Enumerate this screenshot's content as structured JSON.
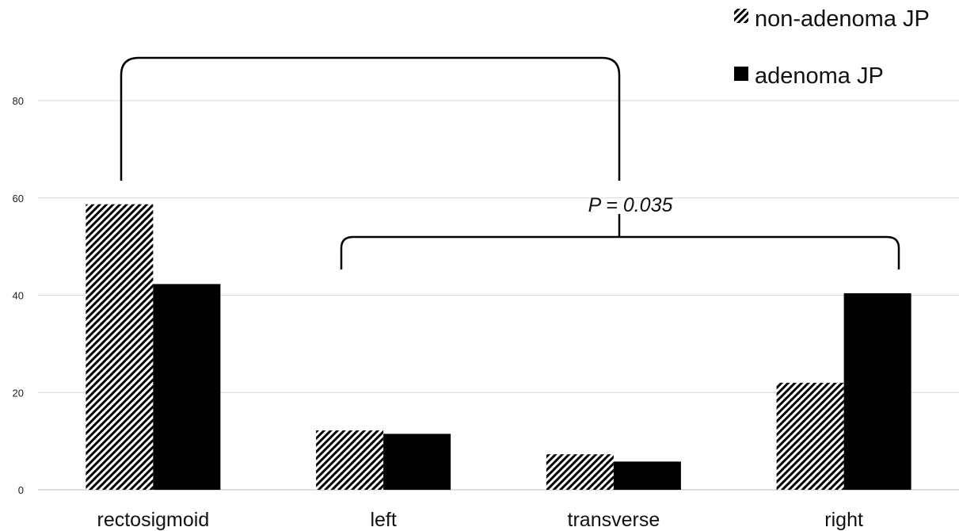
{
  "chart_data": {
    "type": "bar",
    "categories": [
      "rectosigmoid",
      "left",
      "transverse",
      "right"
    ],
    "series": [
      {
        "name": "non-adenoma JP",
        "values": [
          58.7,
          12.2,
          7.3,
          22.0
        ],
        "pattern": "diagonal-hatch",
        "color": "#000000"
      },
      {
        "name": "adenoma JP",
        "values": [
          42.3,
          11.5,
          5.8,
          40.4
        ],
        "pattern": "solid",
        "color": "#000000"
      }
    ],
    "ylim": [
      0,
      80
    ],
    "yticks": [
      0,
      20,
      40,
      60,
      80
    ],
    "grid": true,
    "legend_position": "top-right",
    "annotation": {
      "text": "P = 0.035",
      "style": "italic",
      "brackets": "rectosigmoid vs left+transverse+right"
    }
  }
}
